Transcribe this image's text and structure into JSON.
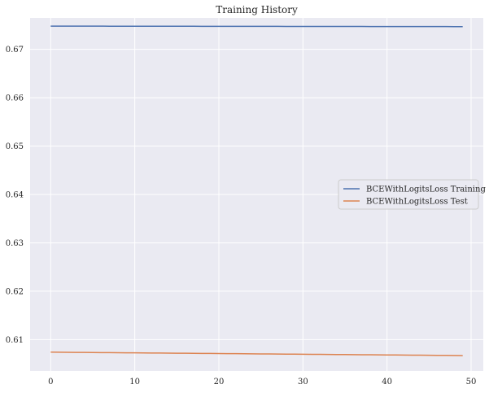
{
  "chart_data": {
    "type": "line",
    "title": "Training History",
    "xlabel": "",
    "ylabel": "",
    "xlim": [
      -2.45,
      51.45
    ],
    "ylim": [
      0.6035,
      0.6765
    ],
    "xticks": [
      0,
      10,
      20,
      30,
      40,
      50
    ],
    "yticks": [
      0.61,
      0.62,
      0.63,
      0.64,
      0.65,
      0.66,
      0.67
    ],
    "grid": true,
    "legend_position": "center-right",
    "colors": {
      "background": "#eaeaf2",
      "grid": "#ffffff",
      "text": "#262626"
    },
    "series": [
      {
        "name": "BCEWithLogitsLoss Training",
        "color": "#4c72b0",
        "x_start": 0,
        "x_end": 49,
        "y_start": 0.6748,
        "y_end": 0.6747
      },
      {
        "name": "BCEWithLogitsLoss Test",
        "color": "#dd8452",
        "x_start": 0,
        "x_end": 49,
        "y_start": 0.6074,
        "y_end": 0.6067
      }
    ]
  }
}
